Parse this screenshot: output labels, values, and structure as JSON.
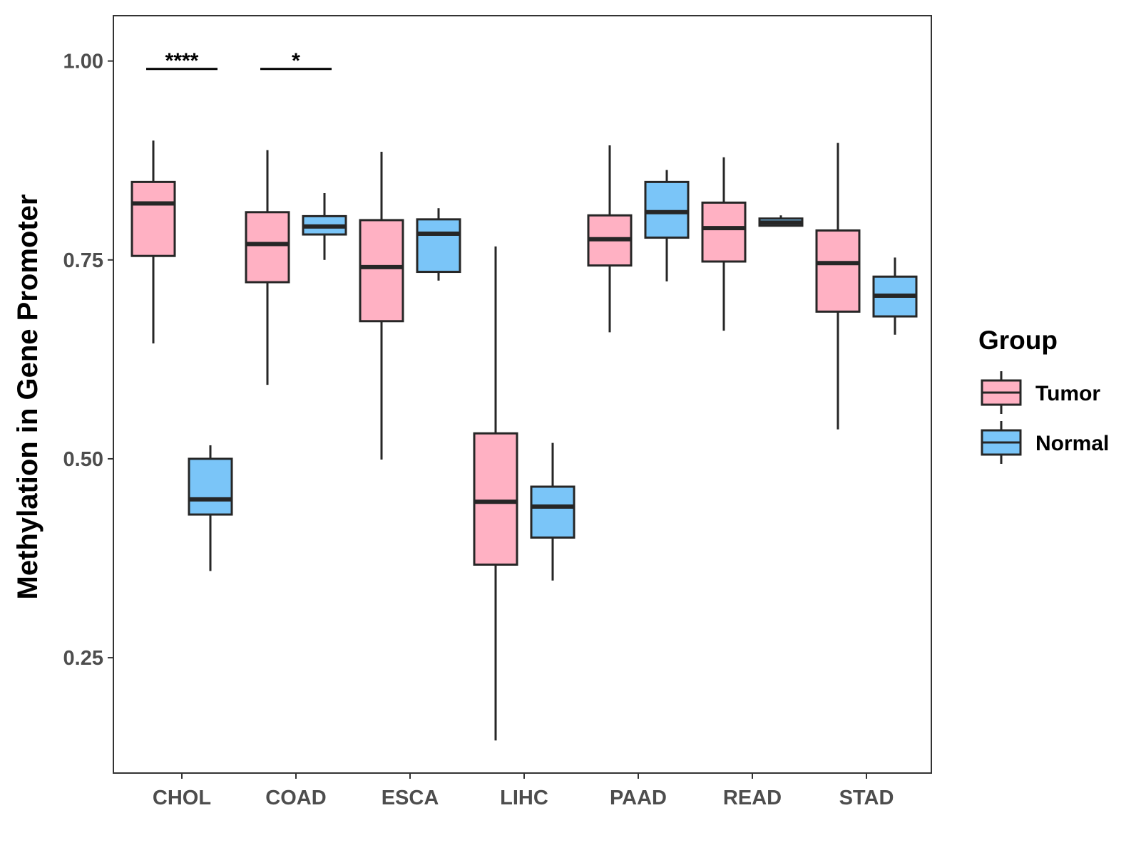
{
  "chart_data": {
    "type": "boxplot",
    "ylabel": "Methylation in Gene Promoter",
    "xlabel": "",
    "ylim": [
      0.105,
      1.057
    ],
    "yticks": [
      0.25,
      0.5,
      0.75,
      1.0
    ],
    "ytick_labels": [
      "0.25",
      "0.50",
      "0.75",
      "1.00"
    ],
    "categories": [
      "CHOL",
      "COAD",
      "ESCA",
      "LIHC",
      "PAAD",
      "READ",
      "STAD"
    ],
    "grid": false,
    "legend": {
      "title": "Group",
      "position": "right",
      "entries": [
        {
          "name": "Tumor",
          "color": "#FFB1C3"
        },
        {
          "name": "Normal",
          "color": "#7AC5F8"
        }
      ]
    },
    "series": [
      {
        "name": "Tumor",
        "color": "#FFB1C3",
        "boxes": [
          {
            "category": "CHOL",
            "whisker_low": 0.645,
            "q1": 0.755,
            "median": 0.821,
            "q3": 0.848,
            "whisker_high": 0.9
          },
          {
            "category": "COAD",
            "whisker_low": 0.593,
            "q1": 0.722,
            "median": 0.77,
            "q3": 0.81,
            "whisker_high": 0.888
          },
          {
            "category": "ESCA",
            "whisker_low": 0.499,
            "q1": 0.673,
            "median": 0.741,
            "q3": 0.8,
            "whisker_high": 0.886
          },
          {
            "category": "LIHC",
            "whisker_low": 0.146,
            "q1": 0.367,
            "median": 0.446,
            "q3": 0.532,
            "whisker_high": 0.767
          },
          {
            "category": "PAAD",
            "whisker_low": 0.659,
            "q1": 0.743,
            "median": 0.776,
            "q3": 0.806,
            "whisker_high": 0.894
          },
          {
            "category": "READ",
            "whisker_low": 0.661,
            "q1": 0.748,
            "median": 0.79,
            "q3": 0.822,
            "whisker_high": 0.879
          },
          {
            "category": "STAD",
            "whisker_low": 0.537,
            "q1": 0.685,
            "median": 0.746,
            "q3": 0.787,
            "whisker_high": 0.897
          }
        ]
      },
      {
        "name": "Normal",
        "color": "#7AC5F8",
        "boxes": [
          {
            "category": "CHOL",
            "whisker_low": 0.359,
            "q1": 0.43,
            "median": 0.449,
            "q3": 0.5,
            "whisker_high": 0.517
          },
          {
            "category": "COAD",
            "whisker_low": 0.75,
            "q1": 0.782,
            "median": 0.792,
            "q3": 0.805,
            "whisker_high": 0.834
          },
          {
            "category": "ESCA",
            "whisker_low": 0.724,
            "q1": 0.735,
            "median": 0.783,
            "q3": 0.801,
            "whisker_high": 0.815
          },
          {
            "category": "LIHC",
            "whisker_low": 0.347,
            "q1": 0.401,
            "median": 0.44,
            "q3": 0.465,
            "whisker_high": 0.52
          },
          {
            "category": "PAAD",
            "whisker_low": 0.723,
            "q1": 0.778,
            "median": 0.81,
            "q3": 0.848,
            "whisker_high": 0.863
          },
          {
            "category": "READ",
            "whisker_low": 0.793,
            "q1": 0.793,
            "median": 0.797,
            "q3": 0.802,
            "whisker_high": 0.806
          },
          {
            "category": "STAD",
            "whisker_low": 0.656,
            "q1": 0.679,
            "median": 0.705,
            "q3": 0.729,
            "whisker_high": 0.753
          }
        ]
      }
    ],
    "annotations": [
      {
        "category": "CHOL",
        "label": "****",
        "y": 0.99
      },
      {
        "category": "COAD",
        "label": "*",
        "y": 0.99
      }
    ]
  }
}
